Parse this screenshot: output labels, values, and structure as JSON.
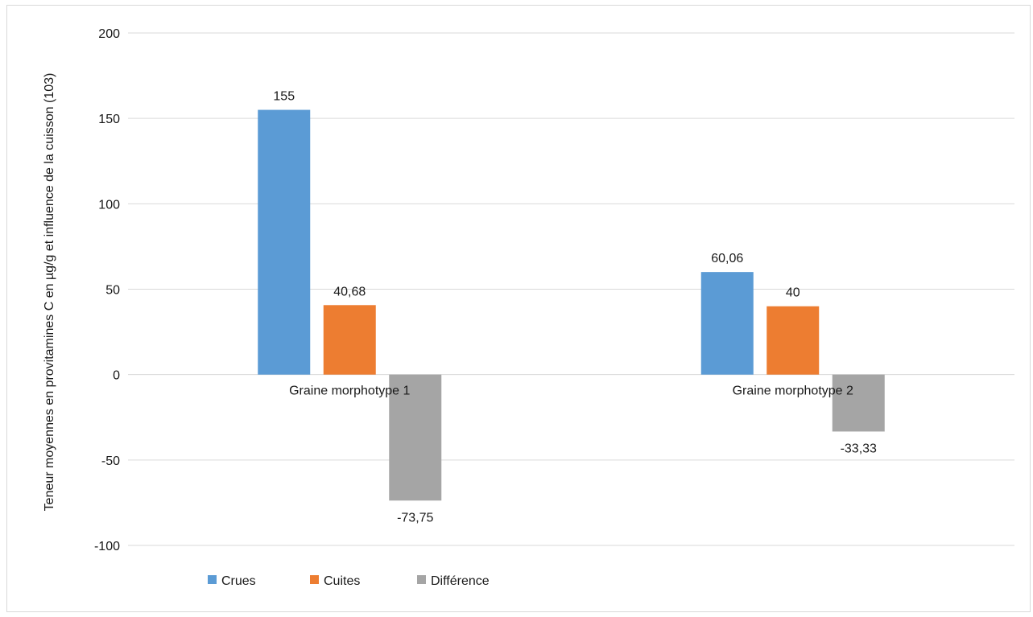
{
  "chart_data": {
    "type": "bar",
    "categories": [
      "Graine morphotype 1",
      "Graine morphotype 2"
    ],
    "series": [
      {
        "name": "Crues",
        "values": [
          155,
          60.06
        ],
        "labels": [
          "155",
          "60,06"
        ],
        "color": "#5b9bd5"
      },
      {
        "name": "Cuites",
        "values": [
          40.68,
          40
        ],
        "labels": [
          "40,68",
          "40"
        ],
        "color": "#ed7d31"
      },
      {
        "name": "Différence",
        "values": [
          -73.75,
          -33.33
        ],
        "labels": [
          "-73,75",
          "-33,33"
        ],
        "color": "#a5a5a5"
      }
    ],
    "title": "",
    "xlabel": "",
    "ylabel": "Teneur moyennes en provitamines C en µg/g et influence de la cuisson (103)",
    "ylim": [
      -100,
      200
    ],
    "yticks": [
      200,
      150,
      100,
      50,
      0,
      -50,
      -100
    ],
    "ytick_labels": [
      "200",
      "150",
      "100",
      "50",
      "0",
      "-50",
      "-100"
    ],
    "grid": true,
    "legend_position": "bottom-left"
  }
}
